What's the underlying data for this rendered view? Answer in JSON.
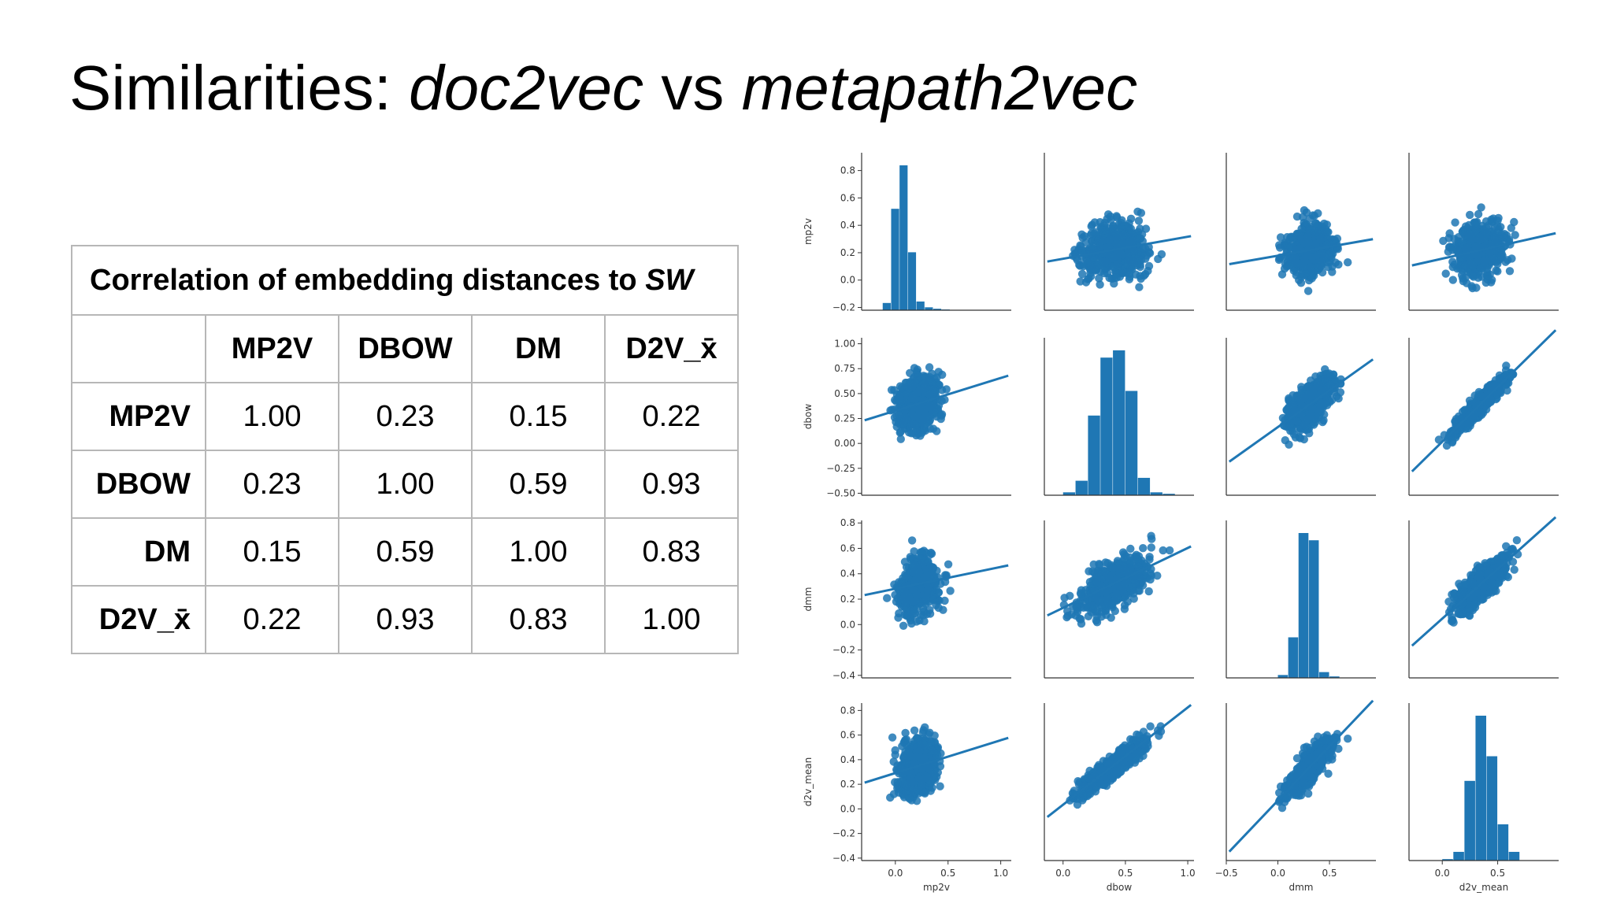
{
  "slide": {
    "title_prefix": "Similarities: ",
    "title_em1": "doc2vec",
    "title_mid": " vs ",
    "title_em2": "metapath2vec"
  },
  "table": {
    "caption_prefix": "Correlation of embedding distances to ",
    "caption_em": "SW",
    "columns": [
      "MP2V",
      "DBOW",
      "DM",
      "D2V_x̄"
    ],
    "rows": [
      {
        "label": "MP2V",
        "values": [
          "1.00",
          "0.23",
          "0.15",
          "0.22"
        ]
      },
      {
        "label": "DBOW",
        "values": [
          "0.23",
          "1.00",
          "0.59",
          "0.93"
        ]
      },
      {
        "label": "DM",
        "values": [
          "0.15",
          "0.59",
          "1.00",
          "0.83"
        ]
      },
      {
        "label": "D2V_x̄",
        "values": [
          "0.22",
          "0.93",
          "0.83",
          "1.00"
        ]
      }
    ]
  },
  "chart_data": {
    "type": "scatter",
    "subtype": "pairplot",
    "color": "#1f77b4",
    "variables": [
      "mp2v",
      "dbow",
      "dmm",
      "d2v_mean"
    ],
    "axes": {
      "mp2v": {
        "range": [
          -0.22,
          0.93
        ],
        "ticks": [
          -0.2,
          0.0,
          0.2,
          0.4,
          0.6,
          0.8
        ],
        "tick_labels": [
          "−0.2",
          "0.0",
          "0.2",
          "0.4",
          "0.6",
          "0.8"
        ]
      },
      "dbow": {
        "range": [
          -0.52,
          1.06
        ],
        "ticks": [
          -0.5,
          -0.25,
          0.0,
          0.25,
          0.5,
          0.75,
          1.0
        ],
        "tick_labels": [
          "−0.50",
          "−0.25",
          "0.00",
          "0.25",
          "0.50",
          "0.75",
          "1.00"
        ]
      },
      "dmm": {
        "range": [
          -0.42,
          0.82
        ],
        "ticks": [
          -0.4,
          -0.2,
          0.0,
          0.2,
          0.4,
          0.6,
          0.8
        ],
        "tick_labels": [
          "−0.4",
          "−0.2",
          "0.0",
          "0.2",
          "0.4",
          "0.6",
          "0.8"
        ]
      },
      "d2v_mean": {
        "range": [
          -0.42,
          0.86
        ],
        "ticks": [
          -0.4,
          -0.2,
          0.0,
          0.2,
          0.4,
          0.6,
          0.8
        ],
        "tick_labels": [
          "−0.4",
          "−0.2",
          "0.0",
          "0.2",
          "0.4",
          "0.6",
          "0.8"
        ]
      }
    },
    "x_axes": {
      "mp2v": {
        "range": [
          -0.32,
          1.1
        ],
        "ticks": [
          0.0,
          0.5,
          1.0
        ],
        "tick_labels": [
          "0.0",
          "0.5",
          "1.0"
        ]
      },
      "dbow": {
        "range": [
          -0.15,
          1.05
        ],
        "ticks": [
          0.0,
          0.5,
          1.0
        ],
        "tick_labels": [
          "0.0",
          "0.5",
          "1.0"
        ]
      },
      "dmm": {
        "range": [
          -0.5,
          0.95
        ],
        "ticks": [
          -0.5,
          0.0,
          0.5
        ],
        "tick_labels": [
          "−0.5",
          "0.0",
          "0.5"
        ]
      },
      "d2v_mean": {
        "range": [
          -0.3,
          1.05
        ],
        "ticks": [
          0.0,
          0.5
        ],
        "tick_labels": [
          "0.0",
          "0.5"
        ]
      }
    },
    "histograms": {
      "mp2v": {
        "bins": [
          -0.12,
          -0.04,
          0.04,
          0.12,
          0.2,
          0.28,
          0.36,
          0.44,
          0.52,
          0.6,
          0.68
        ],
        "counts": [
          0.05,
          0.7,
          1.0,
          0.4,
          0.06,
          0.02,
          0.01,
          0.005,
          0,
          0
        ]
      },
      "dbow": {
        "bins": [
          0.0,
          0.1,
          0.2,
          0.3,
          0.4,
          0.5,
          0.6,
          0.7,
          0.8,
          0.9
        ],
        "counts": [
          0.02,
          0.1,
          0.55,
          0.95,
          1.0,
          0.72,
          0.12,
          0.02,
          0.01
        ]
      },
      "dmm": {
        "bins": [
          0.0,
          0.1,
          0.2,
          0.3,
          0.4,
          0.5,
          0.6
        ],
        "counts": [
          0.02,
          0.28,
          1.0,
          0.95,
          0.04,
          0.01
        ]
      },
      "d2v_mean": {
        "bins": [
          0.0,
          0.1,
          0.2,
          0.3,
          0.4,
          0.5,
          0.6,
          0.7
        ],
        "counts": [
          0.01,
          0.06,
          0.55,
          1.0,
          0.72,
          0.25,
          0.06
        ]
      }
    },
    "correlations": [
      [
        1.0,
        0.23,
        0.15,
        0.22
      ],
      [
        0.23,
        1.0,
        0.59,
        0.93
      ],
      [
        0.15,
        0.59,
        1.0,
        0.83
      ],
      [
        0.22,
        0.93,
        0.83,
        1.0
      ]
    ]
  }
}
